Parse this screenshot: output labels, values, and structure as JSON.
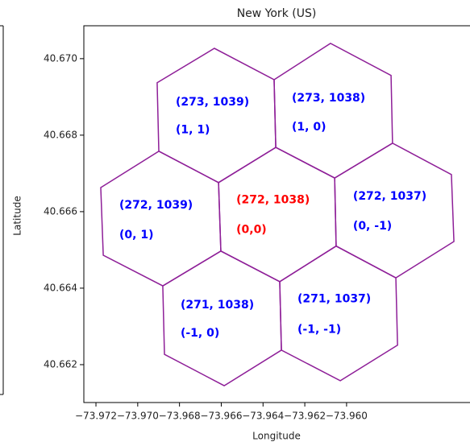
{
  "chart_data": {
    "type": "polygon",
    "title": "New York (US)",
    "xlabel": "Longitude",
    "ylabel": "Latitude",
    "xlim": [
      -73.97258,
      -73.95409
    ],
    "ylim": [
      40.66101,
      40.67086
    ],
    "xticks": [
      {
        "value": -73.972,
        "label": "−73.972"
      },
      {
        "value": -73.97,
        "label": "−73.970"
      },
      {
        "value": -73.968,
        "label": "−73.968"
      },
      {
        "value": -73.966,
        "label": "−73.966"
      },
      {
        "value": -73.964,
        "label": "−73.964"
      },
      {
        "value": -73.962,
        "label": "−73.962"
      },
      {
        "value": -73.96,
        "label": "−73.960"
      }
    ],
    "yticks": [
      {
        "value": 40.662,
        "label": "40.662"
      },
      {
        "value": 40.664,
        "label": "40.664"
      },
      {
        "value": 40.666,
        "label": "40.666"
      },
      {
        "value": 40.668,
        "label": "40.668"
      },
      {
        "value": 40.67,
        "label": "40.670"
      }
    ],
    "color": "#8e1f98",
    "polygons": [
      {
        "x": [
          -73.96613,
          -73.96339,
          -73.96057,
          -73.9605,
          -73.9632,
          -73.96602
        ],
        "y": [
          40.66676,
          40.66768,
          40.66688,
          40.6651,
          40.66417,
          40.66497
        ]
      },
      {
        "x": [
          -73.96907,
          -73.96633,
          -73.96347,
          -73.96339,
          -73.96613,
          -73.96899
        ],
        "y": [
          40.66937,
          40.67027,
          40.66945,
          40.66768,
          40.66676,
          40.66758
        ]
      },
      {
        "x": [
          -73.96347,
          -73.96077,
          -73.95787,
          -73.9578,
          -73.96057,
          -73.96339
        ],
        "y": [
          40.66945,
          40.6704,
          40.66956,
          40.66779,
          40.66688,
          40.66768
        ]
      },
      {
        "x": [
          -73.97177,
          -73.96899,
          -73.96613,
          -73.96602,
          -73.9688,
          -73.97165
        ],
        "y": [
          40.66663,
          40.66758,
          40.66676,
          40.66497,
          40.66406,
          40.66486
        ]
      },
      {
        "x": [
          -73.96057,
          -73.9578,
          -73.95498,
          -73.95486,
          -73.95764,
          -73.9605
        ],
        "y": [
          40.66688,
          40.66779,
          40.66697,
          40.66522,
          40.66427,
          40.6651
        ]
      },
      {
        "x": [
          -73.9688,
          -73.96602,
          -73.9632,
          -73.96312,
          -73.96586,
          -73.96872
        ],
        "y": [
          40.66406,
          40.66497,
          40.66417,
          40.66238,
          40.66145,
          40.66227
        ]
      },
      {
        "x": [
          -73.9632,
          -73.9605,
          -73.95764,
          -73.95756,
          -73.9603,
          -73.96312
        ],
        "y": [
          40.66417,
          40.6651,
          40.66427,
          40.66251,
          40.66158,
          40.66238
        ]
      }
    ],
    "annotations": [
      {
        "text": "(273, 1039)",
        "x": -73.96818,
        "y": 40.66886,
        "color": "#0000ff"
      },
      {
        "text": "(1, 1)",
        "x": -73.96818,
        "y": 40.66813,
        "color": "#0000ff"
      },
      {
        "text": "(273, 1038)",
        "x": -73.96262,
        "y": 40.66897,
        "color": "#0000ff"
      },
      {
        "text": "(1, 0)",
        "x": -73.96262,
        "y": 40.66821,
        "color": "#0000ff"
      },
      {
        "text": "(272, 1039)",
        "x": -73.97088,
        "y": 40.66617,
        "color": "#0000ff"
      },
      {
        "text": "(0, 1)",
        "x": -73.97088,
        "y": 40.66539,
        "color": "#0000ff"
      },
      {
        "text": "(272, 1038)",
        "x": -73.96528,
        "y": 40.6663,
        "color": "#ff0000"
      },
      {
        "text": "(0,0)",
        "x": -73.96528,
        "y": 40.66552,
        "color": "#ff0000"
      },
      {
        "text": "(272, 1037)",
        "x": -73.95969,
        "y": 40.6664,
        "color": "#0000ff"
      },
      {
        "text": "(0, -1)",
        "x": -73.95969,
        "y": 40.66562,
        "color": "#0000ff"
      },
      {
        "text": "(271, 1038)",
        "x": -73.96795,
        "y": 40.66356,
        "color": "#0000ff"
      },
      {
        "text": "(-1, 0)",
        "x": -73.96795,
        "y": 40.66282,
        "color": "#0000ff"
      },
      {
        "text": "(271, 1037)",
        "x": -73.96235,
        "y": 40.66371,
        "color": "#0000ff"
      },
      {
        "text": "(-1, -1)",
        "x": -73.96235,
        "y": 40.66291,
        "color": "#0000ff"
      }
    ]
  }
}
